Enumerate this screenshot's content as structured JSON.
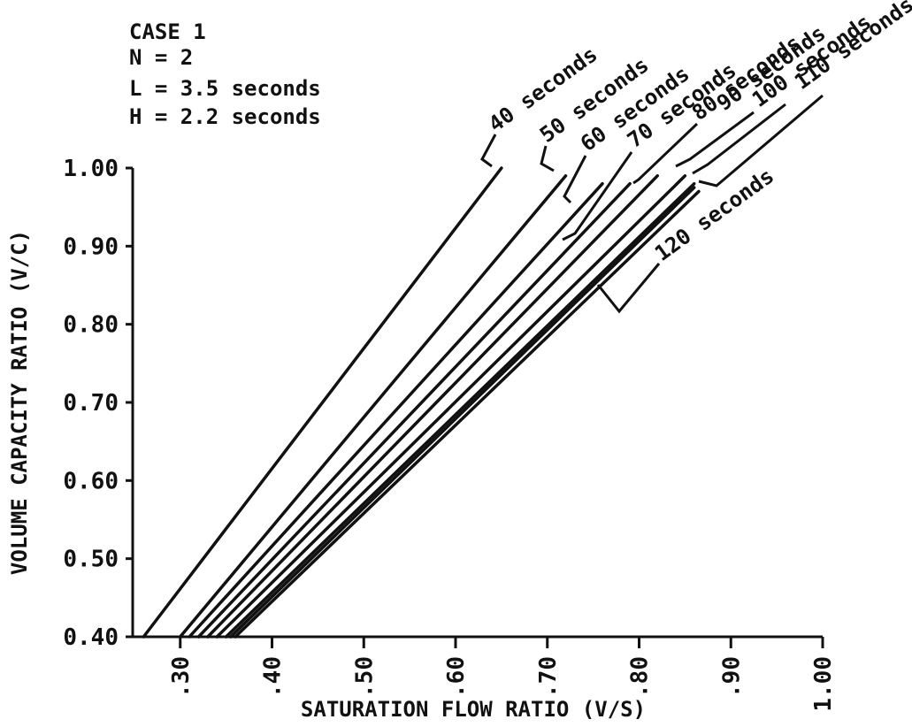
{
  "chart_data": {
    "type": "line",
    "title": "",
    "xlabel": "SATURATION FLOW RATIO (V/S)",
    "ylabel": "VOLUME CAPACITY RATIO (V/C)",
    "xlim": [
      0.26,
      1.0
    ],
    "ylim": [
      0.4,
      1.0
    ],
    "x_ticks": [
      ".30",
      ".40",
      ".50",
      ".60",
      ".70",
      ".80",
      ".90",
      "1.00"
    ],
    "y_ticks": [
      "0.40",
      "0.50",
      "0.60",
      "0.70",
      "0.80",
      "0.90",
      "1.00"
    ],
    "legend_position": "labels on lines, top-right",
    "annotations": [
      "CASE 1",
      "N = 2",
      "L = 3.5 seconds",
      "H = 2.2 seconds"
    ],
    "series": [
      {
        "name": "40 seconds",
        "points": [
          [
            0.26,
            0.4
          ],
          [
            0.65,
            1.0
          ]
        ]
      },
      {
        "name": "50 seconds",
        "points": [
          [
            0.3,
            0.4
          ],
          [
            0.72,
            0.99
          ]
        ]
      },
      {
        "name": "60 seconds",
        "points": [
          [
            0.31,
            0.4
          ],
          [
            0.76,
            0.98
          ]
        ]
      },
      {
        "name": "70 seconds",
        "points": [
          [
            0.32,
            0.4
          ],
          [
            0.79,
            0.98
          ]
        ]
      },
      {
        "name": "80 seconds",
        "points": [
          [
            0.33,
            0.4
          ],
          [
            0.82,
            0.99
          ]
        ]
      },
      {
        "name": "90 seconds",
        "points": [
          [
            0.34,
            0.4
          ],
          [
            0.85,
            0.99
          ]
        ]
      },
      {
        "name": "100 seconds",
        "points": [
          [
            0.35,
            0.4
          ],
          [
            0.86,
            0.98
          ]
        ]
      },
      {
        "name": "110 seconds",
        "points": [
          [
            0.355,
            0.4
          ],
          [
            0.86,
            0.975
          ]
        ]
      },
      {
        "name": "120 seconds",
        "points": [
          [
            0.36,
            0.4
          ],
          [
            0.865,
            0.97
          ]
        ]
      }
    ]
  }
}
